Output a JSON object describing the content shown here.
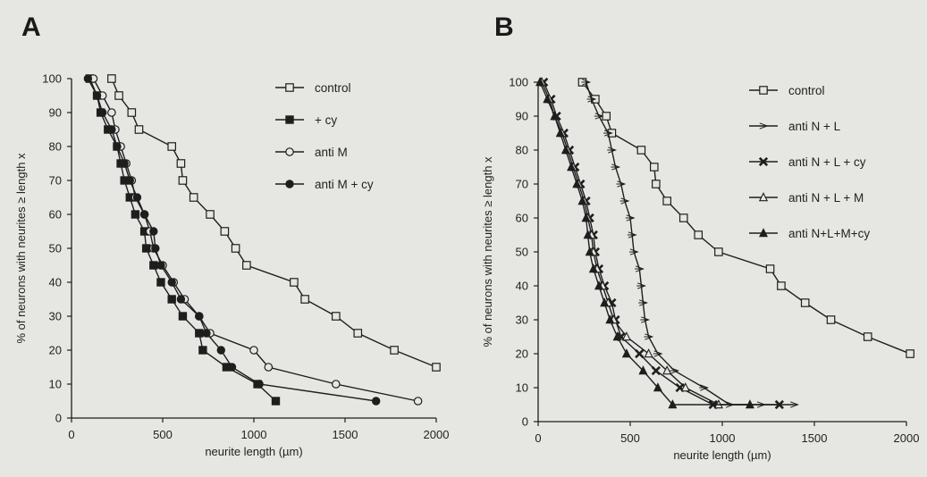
{
  "panels": {
    "a": "A",
    "b": "B"
  },
  "chart_data": [
    {
      "type": "line",
      "panel": "A",
      "xlabel": "neurite length (µm)",
      "ylabel": "% of neurons with neurites ≥ length x",
      "xlim": [
        0,
        2000
      ],
      "ylim": [
        0,
        100
      ],
      "xticks": [
        0,
        500,
        1000,
        1500,
        2000
      ],
      "yticks": [
        0,
        10,
        20,
        30,
        40,
        50,
        60,
        70,
        80,
        90,
        100
      ],
      "legend_position": "top-right",
      "series": [
        {
          "name": "control",
          "marker": "square-open",
          "x": [
            220,
            260,
            330,
            370,
            550,
            600,
            610,
            670,
            760,
            840,
            900,
            960,
            1220,
            1280,
            1450,
            1570,
            1770,
            2000
          ],
          "y": [
            100,
            95,
            90,
            85,
            80,
            75,
            70,
            65,
            60,
            55,
            50,
            45,
            40,
            35,
            30,
            25,
            20,
            15
          ]
        },
        {
          "name": "+ cy",
          "marker": "square-filled",
          "x": [
            100,
            140,
            160,
            200,
            250,
            270,
            290,
            320,
            350,
            400,
            410,
            450,
            490,
            550,
            610,
            700,
            720,
            850,
            1020,
            1120
          ],
          "y": [
            100,
            95,
            90,
            85,
            80,
            75,
            70,
            65,
            60,
            55,
            50,
            45,
            40,
            35,
            30,
            25,
            20,
            15,
            10,
            5
          ]
        },
        {
          "name": "anti M",
          "marker": "circle-open",
          "x": [
            120,
            170,
            220,
            240,
            270,
            300,
            330,
            350,
            400,
            430,
            450,
            500,
            560,
            620,
            700,
            760,
            1000,
            1080,
            1450,
            1900
          ],
          "y": [
            100,
            95,
            90,
            85,
            80,
            75,
            70,
            65,
            60,
            55,
            50,
            45,
            40,
            35,
            30,
            25,
            20,
            15,
            10,
            5
          ]
        },
        {
          "name": "anti M + cy",
          "marker": "circle-filled",
          "x": [
            90,
            140,
            170,
            220,
            250,
            290,
            320,
            360,
            400,
            450,
            460,
            490,
            550,
            600,
            700,
            740,
            820,
            880,
            1030,
            1670
          ],
          "y": [
            100,
            95,
            90,
            85,
            80,
            75,
            70,
            65,
            60,
            55,
            50,
            45,
            40,
            35,
            30,
            25,
            20,
            15,
            10,
            5
          ]
        }
      ]
    },
    {
      "type": "line",
      "panel": "B",
      "xlabel": "neurite length (µm)",
      "ylabel": "% of neurons with neurites ≥ length x",
      "xlim": [
        0,
        2000
      ],
      "ylim": [
        0,
        100
      ],
      "xticks": [
        0,
        500,
        1000,
        1500,
        2000
      ],
      "yticks": [
        0,
        10,
        20,
        30,
        40,
        50,
        60,
        70,
        80,
        90,
        100
      ],
      "legend_position": "top-right",
      "series": [
        {
          "name": "control",
          "marker": "square-open",
          "x": [
            240,
            310,
            370,
            400,
            560,
            630,
            640,
            700,
            790,
            870,
            980,
            1260,
            1320,
            1450,
            1590,
            1790,
            2020
          ],
          "y": [
            100,
            95,
            90,
            85,
            80,
            75,
            70,
            65,
            60,
            55,
            50,
            45,
            40,
            35,
            30,
            25,
            20
          ]
        },
        {
          "name": "anti N + L",
          "marker": "arrow-open",
          "x": [
            260,
            290,
            330,
            380,
            400,
            420,
            450,
            470,
            500,
            510,
            520,
            550,
            560,
            570,
            580,
            600,
            650,
            740,
            900,
            1040,
            1210,
            1390
          ],
          "y": [
            100,
            95,
            90,
            85,
            80,
            75,
            70,
            65,
            60,
            55,
            50,
            45,
            40,
            35,
            30,
            25,
            20,
            15,
            10,
            5,
            5,
            5
          ]
        },
        {
          "name": "anti N + L + cy",
          "marker": "x-bold",
          "x": [
            30,
            70,
            100,
            140,
            170,
            200,
            230,
            260,
            280,
            300,
            310,
            330,
            360,
            400,
            420,
            450,
            550,
            640,
            770,
            950,
            1310
          ],
          "y": [
            100,
            95,
            90,
            85,
            80,
            75,
            70,
            65,
            60,
            55,
            50,
            45,
            40,
            35,
            30,
            25,
            20,
            15,
            10,
            5,
            5
          ]
        },
        {
          "name": "anti N + L + M",
          "marker": "triangle-open",
          "x": [
            20,
            60,
            90,
            130,
            160,
            190,
            220,
            250,
            270,
            290,
            300,
            320,
            350,
            380,
            410,
            480,
            600,
            700,
            800,
            980
          ],
          "y": [
            100,
            95,
            90,
            85,
            80,
            75,
            70,
            65,
            60,
            55,
            50,
            45,
            40,
            35,
            30,
            25,
            20,
            15,
            10,
            5
          ]
        },
        {
          "name": "anti N+L+M+cy",
          "marker": "triangle-filled",
          "x": [
            10,
            50,
            90,
            120,
            150,
            180,
            210,
            240,
            260,
            270,
            280,
            300,
            330,
            360,
            390,
            430,
            480,
            570,
            650,
            730,
            1150
          ],
          "y": [
            100,
            95,
            90,
            85,
            80,
            75,
            70,
            65,
            60,
            55,
            50,
            45,
            40,
            35,
            30,
            25,
            20,
            15,
            10,
            5,
            5
          ]
        }
      ]
    }
  ]
}
